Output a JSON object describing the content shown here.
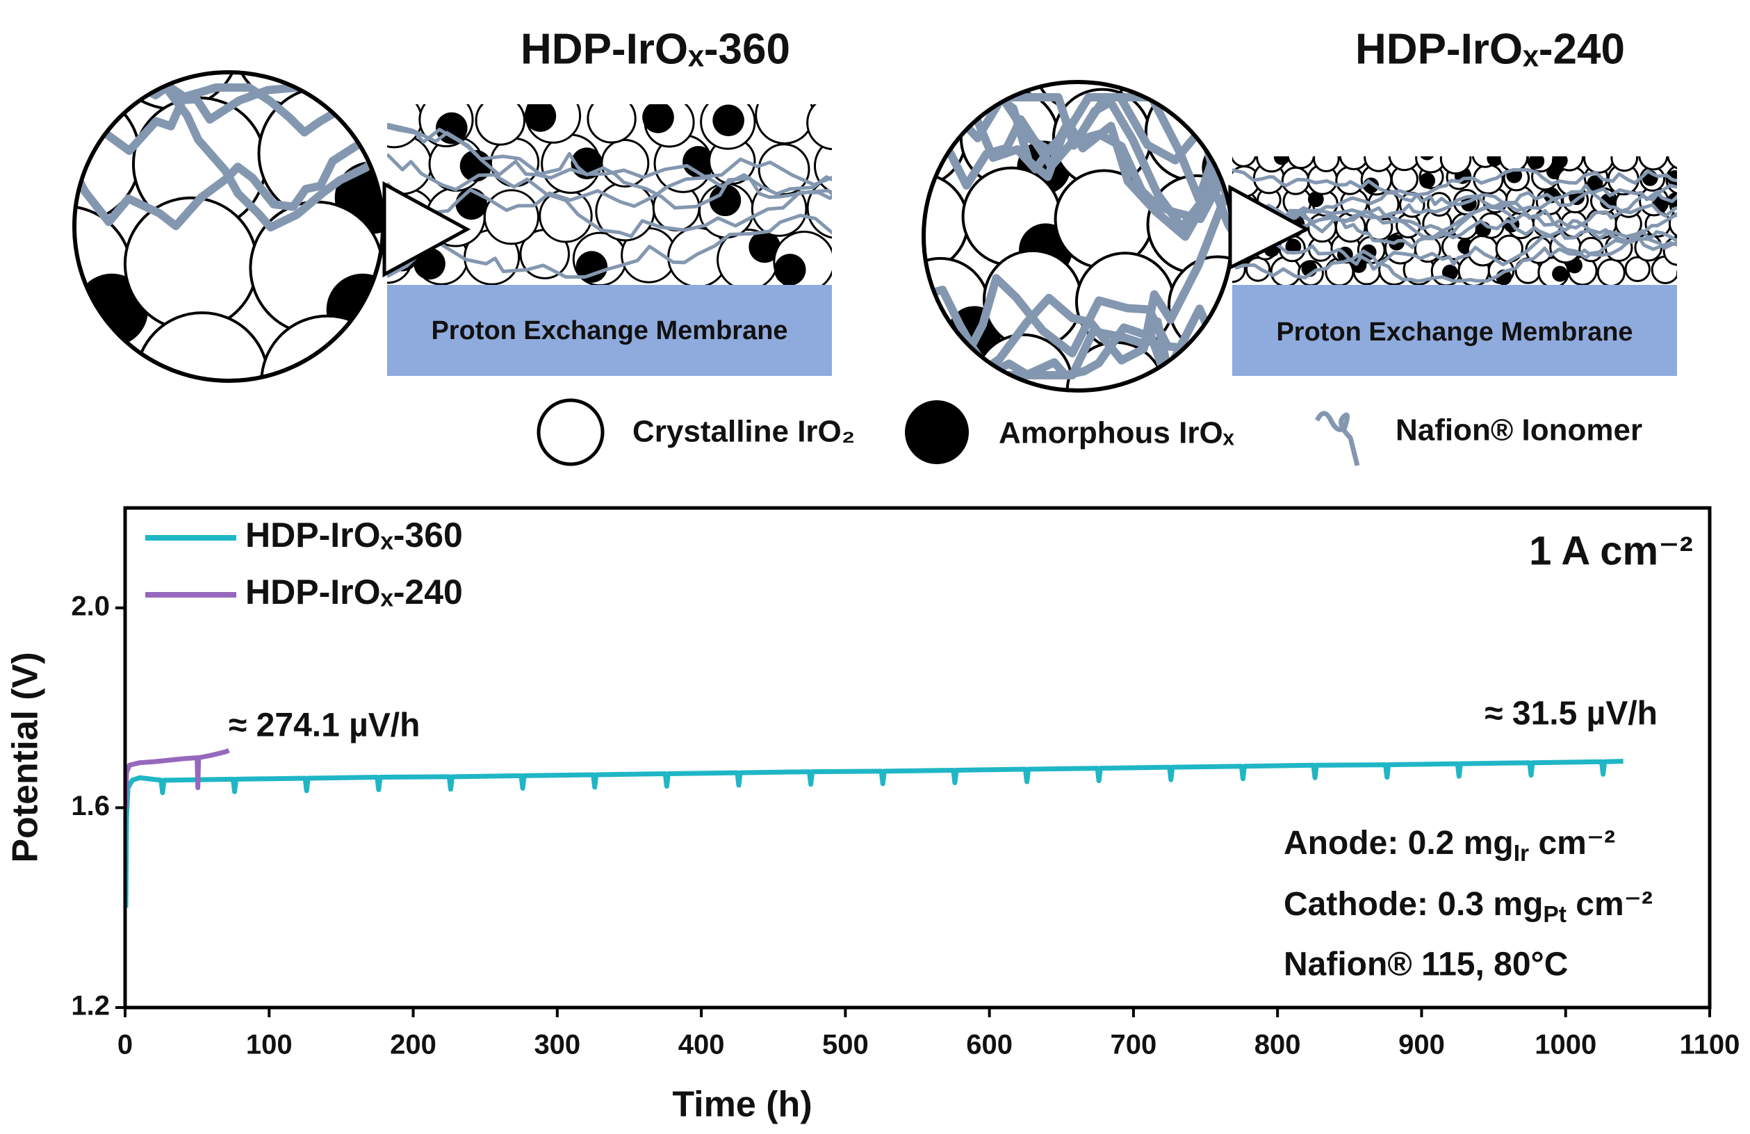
{
  "schematic": {
    "titles": [
      "HDP-IrOₓ-360",
      "HDP-IrOₓ-240"
    ],
    "membrane": "Proton Exchange Membrane",
    "legend": [
      "Crystalline IrO₂",
      "Amorphous IrOₓ",
      "Nafion® Ionomer"
    ]
  },
  "chart_data": {
    "type": "line",
    "xlabel": "Time (h)",
    "ylabel": "Potential (V)",
    "xlim": [
      0,
      1100
    ],
    "xticks": [
      0,
      100,
      200,
      300,
      400,
      500,
      600,
      700,
      800,
      900,
      1000,
      1100
    ],
    "ylim": [
      1.2,
      2.2
    ],
    "yticks": [
      1.2,
      1.6,
      {
        "value": 2.0,
        "label": "2.0"
      }
    ],
    "legend": "upper left",
    "series": [
      {
        "name": "HDP-IrOₓ-360",
        "color": "#1fb6c6",
        "x": [
          0.5,
          1,
          2,
          5,
          10,
          25,
          26,
          27,
          75,
          76,
          77,
          125,
          126,
          127,
          175,
          176,
          177,
          225,
          226,
          227,
          275,
          276,
          277,
          325,
          326,
          327,
          375,
          376,
          377,
          425,
          426,
          427,
          475,
          476,
          477,
          525,
          526,
          527,
          575,
          576,
          577,
          625,
          626,
          627,
          675,
          676,
          677,
          725,
          726,
          727,
          775,
          776,
          777,
          825,
          826,
          827,
          875,
          876,
          877,
          925,
          926,
          927,
          975,
          976,
          977,
          1025,
          1026,
          1027,
          1040
        ],
        "values": [
          1.4,
          1.58,
          1.64,
          1.655,
          1.66,
          1.655,
          1.63,
          1.655,
          1.657,
          1.632,
          1.657,
          1.659,
          1.634,
          1.659,
          1.661,
          1.636,
          1.661,
          1.662,
          1.637,
          1.662,
          1.664,
          1.639,
          1.664,
          1.666,
          1.641,
          1.666,
          1.668,
          1.643,
          1.668,
          1.67,
          1.645,
          1.67,
          1.672,
          1.647,
          1.672,
          1.673,
          1.648,
          1.673,
          1.675,
          1.65,
          1.675,
          1.677,
          1.652,
          1.677,
          1.679,
          1.654,
          1.679,
          1.681,
          1.656,
          1.681,
          1.683,
          1.658,
          1.683,
          1.685,
          1.66,
          1.685,
          1.686,
          1.661,
          1.686,
          1.688,
          1.663,
          1.688,
          1.69,
          1.665,
          1.69,
          1.692,
          1.667,
          1.692,
          1.693
        ]
      },
      {
        "name": "HDP-IrOₓ-240",
        "color": "#9668bd",
        "x": [
          0.5,
          1,
          3,
          10,
          20,
          30,
          40,
          50,
          50.5,
          51,
          60,
          70,
          72
        ],
        "values": [
          1.6,
          1.67,
          1.685,
          1.69,
          1.692,
          1.695,
          1.698,
          1.7,
          1.64,
          1.7,
          1.705,
          1.712,
          1.715
        ]
      }
    ],
    "annotations": {
      "current_density": "1 A cm⁻²",
      "rate_240": "≈ 274.1 µV/h",
      "rate_360": "≈ 31.5 µV/h",
      "anode": [
        "Anode: 0.2 mg",
        "Ir",
        " cm⁻²"
      ],
      "cathode": [
        "Cathode: 0.3 mg",
        "Pt",
        " cm⁻²"
      ],
      "membrane": "Nafion® 115, 80°C"
    }
  }
}
